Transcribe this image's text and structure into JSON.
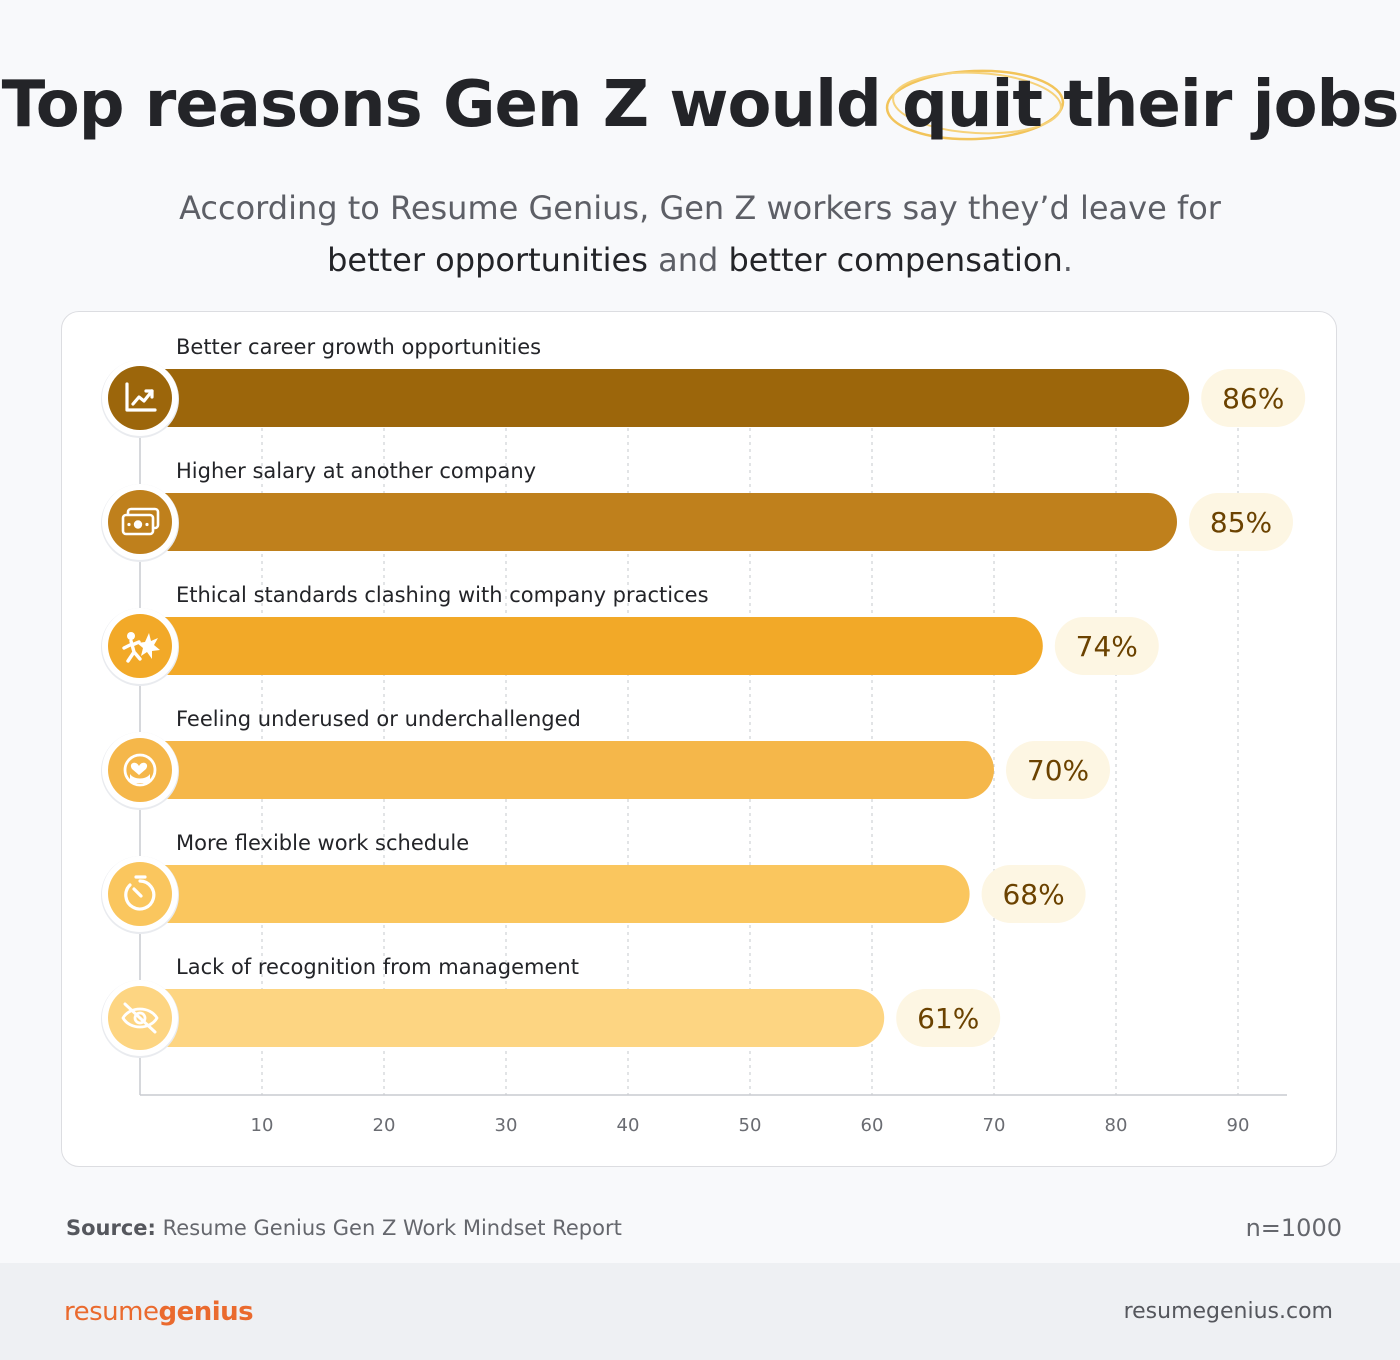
{
  "header": {
    "title_before": "Top reasons Gen Z would ",
    "title_highlight": "quit",
    "title_after": " their jobs",
    "subtitle_line1": "According to Resume Genius, Gen Z workers say they’d leave for",
    "subtitle_bold1": "better opportunities",
    "subtitle_mid": " and ",
    "subtitle_bold2": "better compensation",
    "subtitle_end": "."
  },
  "chart_data": {
    "type": "bar",
    "orientation": "horizontal",
    "categories": [
      "Better career growth opportunities",
      "Higher salary at another company",
      "Ethical standards clashing with company practices",
      "Feeling underused or underchallenged",
      "More flexible work schedule",
      "Lack of recognition from management"
    ],
    "values": [
      86,
      85,
      74,
      70,
      68,
      61
    ],
    "value_labels": [
      "86%",
      "85%",
      "74%",
      "70%",
      "68%",
      "61%"
    ],
    "icons": [
      "chart-growth-icon",
      "money-bills-icon",
      "clash-icon",
      "hands-heart-icon",
      "timer-icon",
      "eye-slash-icon"
    ],
    "colors": [
      "#9c660b",
      "#bf801c",
      "#f2a928",
      "#f5b74a",
      "#fac65e",
      "#fdd582"
    ],
    "xticks": [
      10,
      20,
      30,
      40,
      50,
      60,
      70,
      80,
      90
    ],
    "xlim": [
      0,
      94
    ],
    "grid": true,
    "label_bg": "#fdf6e3",
    "label_color": "#6b4200"
  },
  "footer": {
    "source_label": "Source:",
    "source_text": " Resume Genius Gen Z Work Mindset Report",
    "n": "n=1000",
    "brand_part1": "resume",
    "brand_part2": "genius",
    "site": "resumegenius.com"
  }
}
